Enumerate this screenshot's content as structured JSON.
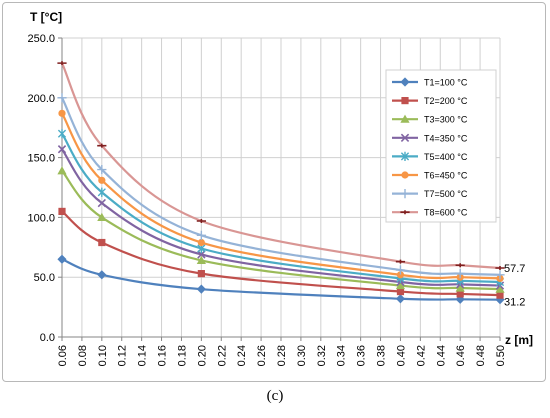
{
  "caption": "(c)",
  "chart_data": {
    "type": "line",
    "title": "",
    "ylabel": "T [°C]",
    "xlabel": "z [m]",
    "ylim": [
      0,
      250
    ],
    "xlim": [
      0.06,
      0.5
    ],
    "y_ticks": [
      "0.0",
      "50.0",
      "100.0",
      "150.0",
      "200.0",
      "250.0"
    ],
    "x_ticks": [
      "0.06",
      "0.08",
      "0.10",
      "0.12",
      "0.14",
      "0.16",
      "0.18",
      "0.20",
      "0.22",
      "0.24",
      "0.26",
      "0.28",
      "0.30",
      "0.32",
      "0.34",
      "0.36",
      "0.38",
      "0.40",
      "0.42",
      "0.44",
      "0.46",
      "0.48",
      "0.50"
    ],
    "grid": true,
    "legend_position": "right",
    "x": [
      0.06,
      0.1,
      0.2,
      0.4,
      0.46,
      0.5
    ],
    "series": [
      {
        "name": "T1=100 °C",
        "color": "#4f81bd",
        "marker": "diamond",
        "values": [
          65,
          52,
          40,
          32,
          31.5,
          31.2
        ]
      },
      {
        "name": "T2=200 °C",
        "color": "#c0504d",
        "marker": "square",
        "values": [
          105,
          79,
          53,
          38,
          36,
          35
        ]
      },
      {
        "name": "T3=300 °C",
        "color": "#9bbb59",
        "marker": "triangle",
        "values": [
          139,
          100,
          64,
          43,
          41,
          40
        ]
      },
      {
        "name": "T4=350 °C",
        "color": "#8064a2",
        "marker": "x",
        "values": [
          157,
          112,
          69,
          46,
          44,
          43
        ]
      },
      {
        "name": "T5=400 °C",
        "color": "#4bacc6",
        "marker": "star",
        "values": [
          170,
          121,
          74,
          49,
          47,
          46
        ]
      },
      {
        "name": "T6=450 °C",
        "color": "#f79646",
        "marker": "circle",
        "values": [
          187,
          131,
          79,
          52,
          50,
          49
        ]
      },
      {
        "name": "T7=500 °C",
        "color": "#95b3d7",
        "marker": "plus",
        "values": [
          200,
          140,
          85,
          56,
          53,
          52
        ]
      },
      {
        "name": "T8=600 °C",
        "color": "#d99694",
        "marker": "dash",
        "values": [
          229,
          160,
          97,
          63,
          60,
          57.7
        ]
      }
    ],
    "annotations": [
      {
        "text": "57.7",
        "series": "T8=600 °C",
        "x": 0.5,
        "y": 57.7
      },
      {
        "text": "31.2",
        "series": "T1=100 °C",
        "x": 0.5,
        "y": 31.2
      }
    ]
  }
}
